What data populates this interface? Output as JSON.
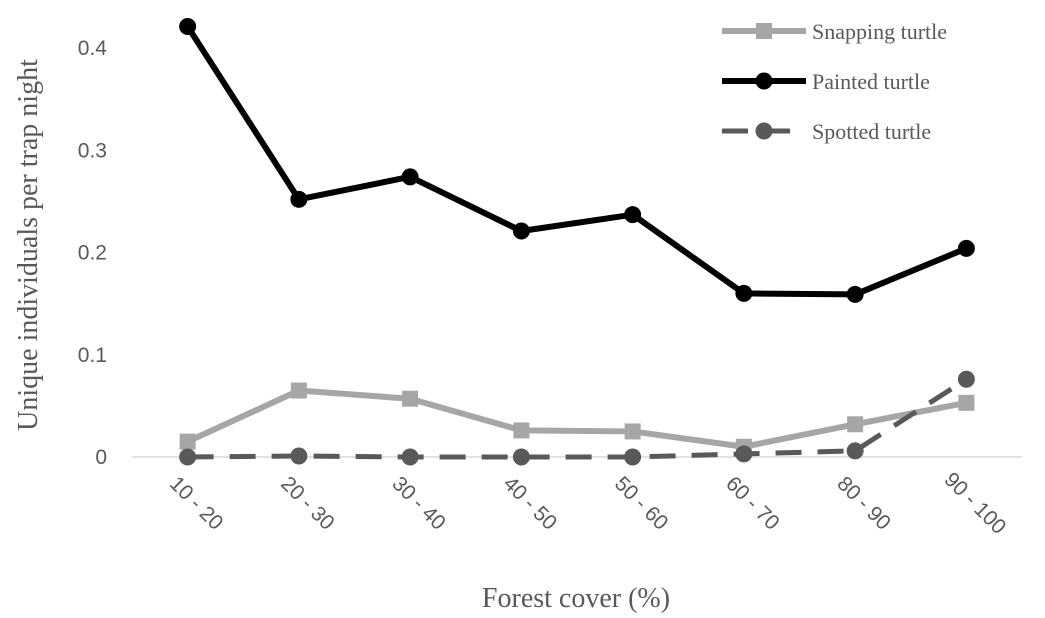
{
  "chart_data": {
    "type": "line",
    "xlabel": "Forest cover (%)",
    "ylabel": "Unique individuals per trap night",
    "categories": [
      "10 - 20",
      "20 - 30",
      "30 - 40",
      "40 - 50",
      "50 - 60",
      "60 - 70",
      "80 - 90",
      "90 - 100"
    ],
    "ylim": [
      0,
      0.4
    ],
    "yticks": [
      "0",
      "0.1",
      "0.2",
      "0.3",
      "0.4"
    ],
    "grid": false,
    "legend_position": "top-right",
    "series": [
      {
        "name": "Snapping turtle",
        "values": [
          0.015,
          0.065,
          0.057,
          0.026,
          0.025,
          0.01,
          0.032,
          0.053
        ],
        "color": "#a6a6a6",
        "marker": "square",
        "dash": "solid"
      },
      {
        "name": "Painted turtle",
        "values": [
          0.421,
          0.252,
          0.274,
          0.221,
          0.237,
          0.16,
          0.159,
          0.204
        ],
        "color": "#000000",
        "marker": "circle",
        "dash": "solid"
      },
      {
        "name": "Spotted turtle",
        "values": [
          0.0,
          0.001,
          0.0,
          0.0,
          0.0,
          0.003,
          0.006,
          0.076
        ],
        "color": "#595959",
        "marker": "circle",
        "dash": "dashed"
      }
    ]
  }
}
